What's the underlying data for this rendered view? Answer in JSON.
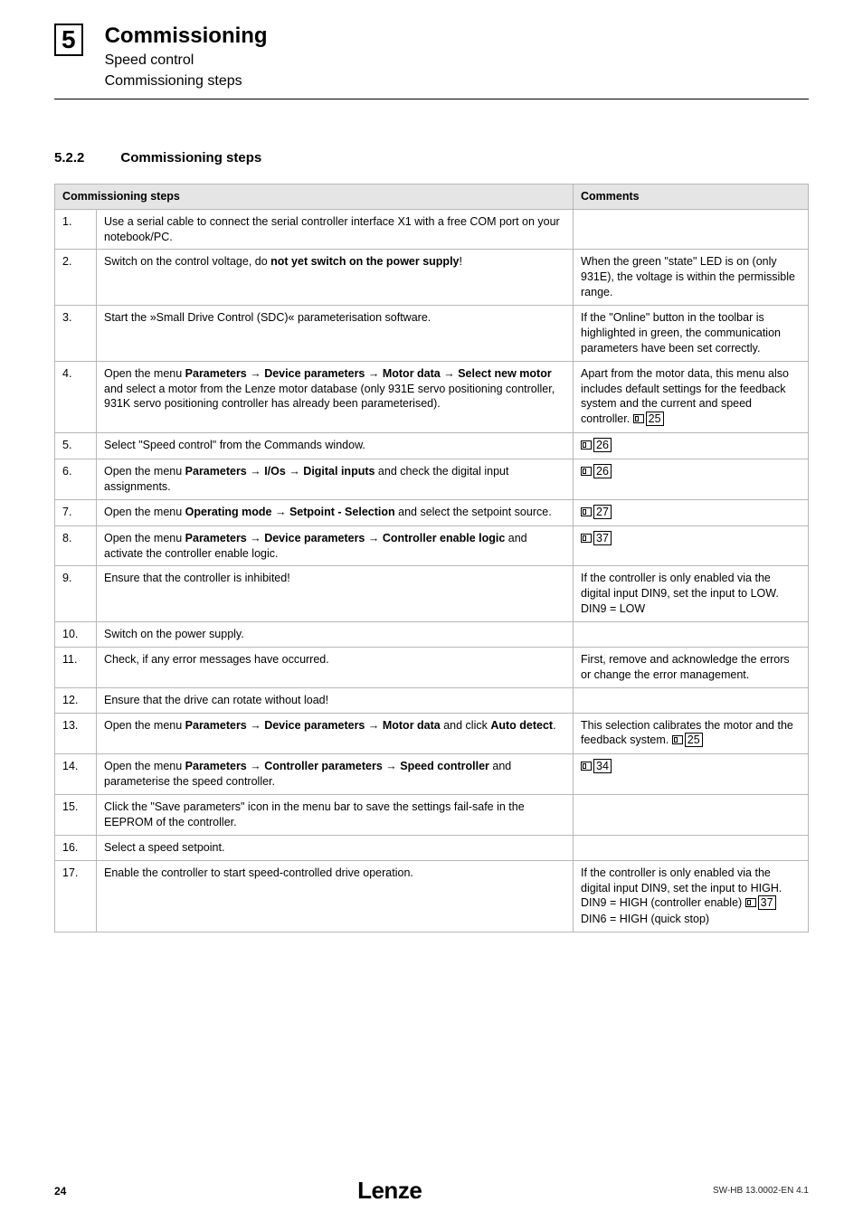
{
  "header": {
    "chapter_num": "5",
    "title": "Commissioning",
    "sub1": "Speed control",
    "sub2": "Commissioning steps"
  },
  "section": {
    "number": "5.2.2",
    "title": "Commissioning steps"
  },
  "table": {
    "head_commissioning": "Commissioning steps",
    "head_comments": "Comments",
    "rows": [
      {
        "n": "1.",
        "desc_html": "Use a serial cable to connect the serial controller interface X1 with a free COM port on your notebook/PC.",
        "comment_html": ""
      },
      {
        "n": "2.",
        "desc_html": "Switch on the control voltage, do <span class='b'>not yet switch on the power supply</span>!",
        "comment_html": "When the green \"state\" LED is on (only 931E), the voltage is within the permissible range."
      },
      {
        "n": "3.",
        "desc_html": "Start the »Small Drive Control (SDC)« parameterisation software.",
        "comment_html": "If the \"Online\" button in the toolbar is highlighted in green, the communication parameters have been set correctly."
      },
      {
        "n": "4.",
        "desc_html": "Open the menu <span class='b'>Parameters <span class='arrow'>→</span> Device parameters <span class='arrow'>→</span> Motor data <span class='arrow'>→</span> Select new motor</span> and select a motor from the Lenze motor database (only 931E servo positioning controller, 931K servo positioning controller has already been parameterised).",
        "comment_html": "Apart from the motor data, this menu also includes default settings for the feedback system and the current and speed controller. <span class='ref-icon'><svg width='12' height='10'><rect x='0.5' y='0.5' width='11' height='9' fill='none' stroke='#000'/><rect x='2.5' y='2.5' width='3' height='5' fill='none' stroke='#000'/></svg></span><span class='ref-num'>25</span>"
      },
      {
        "n": "5.",
        "desc_html": "Select \"Speed control\" from the Commands window.",
        "comment_html": "<span class='ref-icon'><svg width='12' height='10'><rect x='0.5' y='0.5' width='11' height='9' fill='none' stroke='#000'/><rect x='2.5' y='2.5' width='3' height='5' fill='none' stroke='#000'/></svg></span><span class='ref-num'>26</span>"
      },
      {
        "n": "6.",
        "desc_html": "Open the menu <span class='b'>Parameters <span class='arrow'>→</span> I/Os <span class='arrow'>→</span> Digital inputs</span> and check the digital input assignments.",
        "comment_html": "<span class='ref-icon'><svg width='12' height='10'><rect x='0.5' y='0.5' width='11' height='9' fill='none' stroke='#000'/><rect x='2.5' y='2.5' width='3' height='5' fill='none' stroke='#000'/></svg></span><span class='ref-num'>26</span>"
      },
      {
        "n": "7.",
        "desc_html": "Open the menu <span class='b'>Operating mode <span class='arrow'>→</span> Setpoint - Selection</span> and select the setpoint source.",
        "comment_html": "<span class='ref-icon'><svg width='12' height='10'><rect x='0.5' y='0.5' width='11' height='9' fill='none' stroke='#000'/><rect x='2.5' y='2.5' width='3' height='5' fill='none' stroke='#000'/></svg></span><span class='ref-num'>27</span>"
      },
      {
        "n": "8.",
        "desc_html": "Open the menu <span class='b'>Parameters <span class='arrow'>→</span> Device parameters <span class='arrow'>→</span> Controller enable logic</span> and activate the controller enable logic.",
        "comment_html": "<span class='ref-icon'><svg width='12' height='10'><rect x='0.5' y='0.5' width='11' height='9' fill='none' stroke='#000'/><rect x='2.5' y='2.5' width='3' height='5' fill='none' stroke='#000'/></svg></span><span class='ref-num'>37</span>"
      },
      {
        "n": "9.",
        "desc_html": "Ensure that the controller is inhibited!",
        "comment_html": "If the controller is only enabled via the digital input DIN9, set the input to LOW.<br>DIN9 = LOW"
      },
      {
        "n": "10.",
        "desc_html": "Switch on the power supply.",
        "comment_html": ""
      },
      {
        "n": "11.",
        "desc_html": "Check, if any error messages have occurred.",
        "comment_html": "First, remove and acknowledge the errors or change the error management."
      },
      {
        "n": "12.",
        "desc_html": "Ensure that the drive can rotate without load!",
        "comment_html": ""
      },
      {
        "n": "13.",
        "desc_html": "Open the menu <span class='b'>Parameters <span class='arrow'>→</span> Device parameters <span class='arrow'>→</span> Motor data</span> and click <span class='b'>Auto detect</span>.",
        "comment_html": "This selection calibrates the motor and the feedback system. <span class='ref-icon'><svg width='12' height='10'><rect x='0.5' y='0.5' width='11' height='9' fill='none' stroke='#000'/><rect x='2.5' y='2.5' width='3' height='5' fill='none' stroke='#000'/></svg></span><span class='ref-num'>25</span>"
      },
      {
        "n": "14.",
        "desc_html": "Open the menu <span class='b'>Parameters <span class='arrow'>→</span> Controller parameters <span class='arrow'>→</span> Speed controller</span> and parameterise the speed controller.",
        "comment_html": "<span class='ref-icon'><svg width='12' height='10'><rect x='0.5' y='0.5' width='11' height='9' fill='none' stroke='#000'/><rect x='2.5' y='2.5' width='3' height='5' fill='none' stroke='#000'/></svg></span><span class='ref-num'>34</span>"
      },
      {
        "n": "15.",
        "desc_html": "Click the \"Save parameters\" icon in the menu bar to save the settings fail-safe in the EEPROM of the controller.",
        "comment_html": ""
      },
      {
        "n": "16.",
        "desc_html": "Select a speed setpoint.",
        "comment_html": ""
      },
      {
        "n": "17.",
        "desc_html": "Enable the controller to start speed-controlled drive operation.",
        "comment_html": "If the controller is only enabled via the digital input DIN9, set the input to HIGH.<br>DIN9 = HIGH (controller enable) <span class='ref-icon'><svg width='12' height='10'><rect x='0.5' y='0.5' width='11' height='9' fill='none' stroke='#000'/><rect x='2.5' y='2.5' width='3' height='5' fill='none' stroke='#000'/></svg></span><span class='ref-num'>37</span><br>DIN6 = HIGH (quick stop)"
      }
    ]
  },
  "footer": {
    "page": "24",
    "logo": "Lenze",
    "docid": "SW-HB 13.0002-EN   4.1"
  }
}
